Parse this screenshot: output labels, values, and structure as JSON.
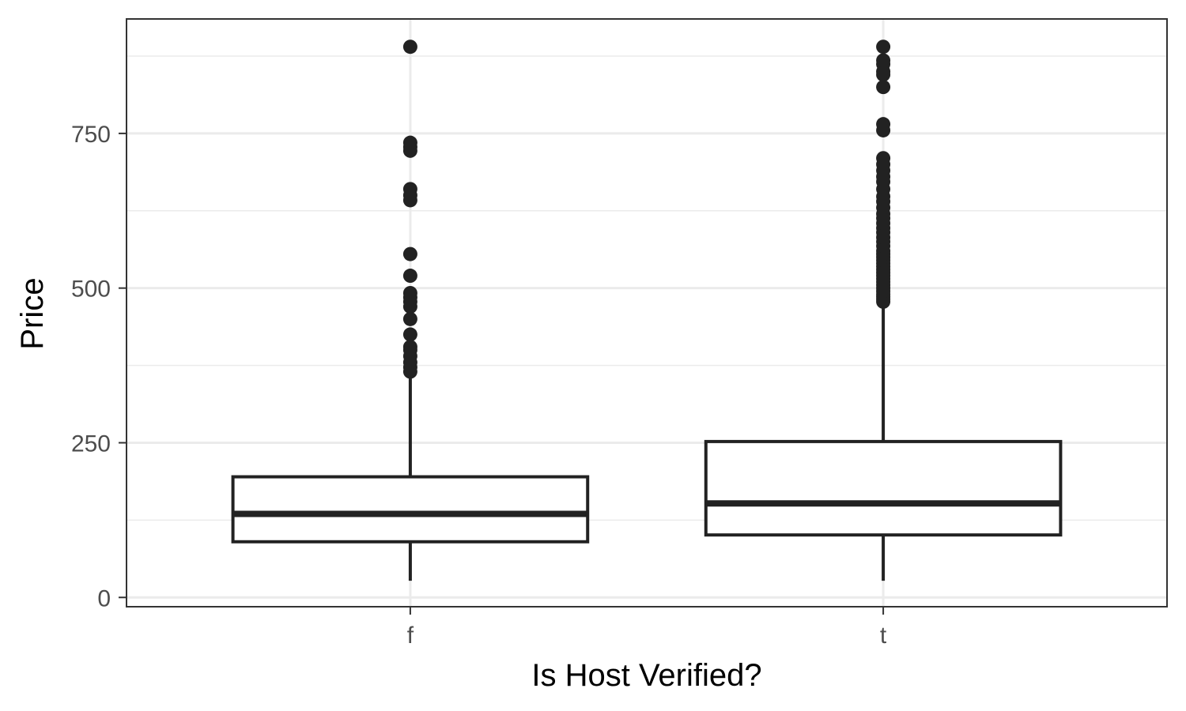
{
  "chart_data": {
    "type": "box",
    "xlabel": "Is Host Verified?",
    "ylabel": "Price",
    "categories": [
      "f",
      "t"
    ],
    "y_ticks": [
      0,
      250,
      500,
      750
    ],
    "ylim": [
      -15,
      935
    ],
    "grid": true,
    "legend": "none",
    "boxes": [
      {
        "category": "f",
        "min": 27,
        "q1": 90,
        "median": 135,
        "q3": 195,
        "max": 195,
        "whisker_high": 365,
        "outliers": [
          365,
          372,
          380,
          390,
          400,
          405,
          425,
          450,
          470,
          478,
          485,
          492,
          520,
          555,
          642,
          650,
          660,
          722,
          728,
          735,
          890
        ]
      },
      {
        "category": "t",
        "min": 27,
        "q1": 101,
        "median": 152,
        "q3": 252,
        "whisker_high": 475,
        "outliers": [
          478,
          482,
          486,
          490,
          495,
          500,
          505,
          510,
          515,
          520,
          525,
          530,
          535,
          540,
          545,
          550,
          555,
          560,
          568,
          575,
          582,
          590,
          597,
          605,
          613,
          620,
          630,
          640,
          648,
          660,
          672,
          680,
          690,
          700,
          710,
          755,
          765,
          825,
          845,
          850,
          862,
          868,
          890
        ]
      }
    ]
  }
}
